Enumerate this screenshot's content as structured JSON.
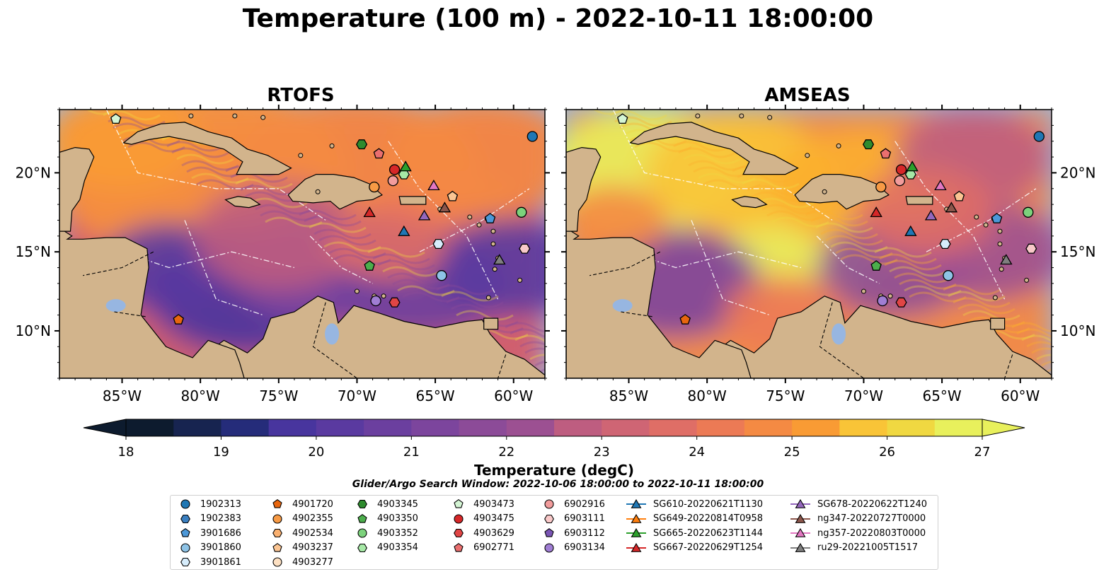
{
  "title": "Temperature (100 m) - 2022-10-11 18:00:00",
  "panels": [
    {
      "title": "RTOFS",
      "background": "#1a1d4e"
    },
    {
      "title": "AMSEAS",
      "background": "#e8b43c"
    }
  ],
  "map": {
    "lon_range": [
      -89,
      -58
    ],
    "lat_range": [
      7,
      24
    ],
    "x_ticks": [
      "85°W",
      "80°W",
      "75°W",
      "70°W",
      "65°W",
      "60°W"
    ],
    "x_tick_lons": [
      -85,
      -80,
      -75,
      -70,
      -65,
      -60
    ],
    "y_ticks": [
      "20°N",
      "15°N",
      "10°N"
    ],
    "y_tick_lats": [
      20,
      15,
      10
    ],
    "land_color": "#d2b48c",
    "ocean_color": "#97b6e1"
  },
  "colorbar": {
    "label": "Temperature (degC)",
    "ticks": [
      "18",
      "19",
      "20",
      "21",
      "22",
      "23",
      "24",
      "25",
      "26",
      "27"
    ],
    "min": 18,
    "max": 27,
    "step": 0.5,
    "colormap": [
      "#0d1b2e",
      "#172450",
      "#252c7a",
      "#362e95",
      "#48359e",
      "#5a3aa0",
      "#6b3f9f",
      "#7c459d",
      "#8c4b98",
      "#9c5092",
      "#ad568a",
      "#be5d80",
      "#cf6574",
      "#df6e66",
      "#ec7a55",
      "#f48a43",
      "#f99b34",
      "#fbae2f",
      "#f9c437",
      "#f0d841",
      "#e8f05c"
    ]
  },
  "search_window": "Glider/Argo Search Window: 2022-10-06 18:00:00 to 2022-10-11 18:00:00",
  "legend": [
    {
      "label": "1902313",
      "marker": "circle",
      "color": "#1f77b4",
      "lon": -58.8,
      "lat": 22.3
    },
    {
      "label": "1902383",
      "marker": "hexagon",
      "color": "#3a7fc0"
    },
    {
      "label": "3901686",
      "marker": "pentagon",
      "color": "#4c98d8",
      "lon": -61.5,
      "lat": 17.1
    },
    {
      "label": "3901860",
      "marker": "circle",
      "color": "#8ec3e6",
      "lon": -64.6,
      "lat": 13.5
    },
    {
      "label": "3901861",
      "marker": "hexagon",
      "color": "#d6ecfb",
      "lon": -64.8,
      "lat": 15.5
    },
    {
      "label": "4901720",
      "marker": "pentagon",
      "color": "#e8660e",
      "lon": -81.4,
      "lat": 10.7
    },
    {
      "label": "4902355",
      "marker": "circle",
      "color": "#f79a45",
      "lon": -68.9,
      "lat": 19.1
    },
    {
      "label": "4902534",
      "marker": "hexagon",
      "color": "#f9b070"
    },
    {
      "label": "4903237",
      "marker": "pentagon",
      "color": "#fbc593",
      "lon": -63.9,
      "lat": 18.5
    },
    {
      "label": "4903277",
      "marker": "circle",
      "color": "#fde0c2"
    },
    {
      "label": "4903345",
      "marker": "hexagon",
      "color": "#2e8b2e",
      "lon": -69.7,
      "lat": 21.8
    },
    {
      "label": "4903350",
      "marker": "pentagon",
      "color": "#4cae4c",
      "lon": -69.2,
      "lat": 14.1
    },
    {
      "label": "4903352",
      "marker": "circle",
      "color": "#7cd27c",
      "lon": -59.5,
      "lat": 17.5
    },
    {
      "label": "4903354",
      "marker": "hexagon",
      "color": "#a6e8a6",
      "lon": -67.0,
      "lat": 19.9
    },
    {
      "label": "4903473",
      "marker": "pentagon",
      "color": "#d4f5d4",
      "lon": -85.4,
      "lat": 23.4
    },
    {
      "label": "4903475",
      "marker": "circle",
      "color": "#d62728",
      "lon": -67.6,
      "lat": 20.2
    },
    {
      "label": "4903629",
      "marker": "hexagon",
      "color": "#e04545",
      "lon": -67.6,
      "lat": 11.8
    },
    {
      "label": "6902771",
      "marker": "pentagon",
      "color": "#ea6f6f",
      "lon": -68.6,
      "lat": 21.2
    },
    {
      "label": "6902916",
      "marker": "circle",
      "color": "#f29c9c",
      "lon": -67.7,
      "lat": 19.5
    },
    {
      "label": "6903111",
      "marker": "hexagon",
      "color": "#f9c9c9",
      "lon": -59.3,
      "lat": 15.2
    },
    {
      "label": "6903112",
      "marker": "pentagon",
      "color": "#7a55b5"
    },
    {
      "label": "6903134",
      "marker": "circle",
      "color": "#a07ed4",
      "lon": -68.8,
      "lat": 11.9
    },
    {
      "label": "SG610-20220621T1130",
      "marker": "triangle",
      "color": "#1f77b4",
      "lon": -67.0,
      "lat": 16.3
    },
    {
      "label": "SG649-20220814T0958",
      "marker": "triangle",
      "color": "#ff7f0e"
    },
    {
      "label": "SG665-20220623T1144",
      "marker": "triangle",
      "color": "#2ca02c",
      "lon": -66.9,
      "lat": 20.4
    },
    {
      "label": "SG667-20220629T1254",
      "marker": "triangle",
      "color": "#d62728",
      "lon": -69.2,
      "lat": 17.5
    },
    {
      "label": "SG678-20220622T1240",
      "marker": "triangle",
      "color": "#9467bd",
      "lon": -65.7,
      "lat": 17.3
    },
    {
      "label": "ng347-20220727T0000",
      "marker": "triangle",
      "color": "#8c564b",
      "lon": -64.4,
      "lat": 17.8
    },
    {
      "label": "ng357-20220803T0000",
      "marker": "triangle",
      "color": "#e377c2",
      "lon": -65.1,
      "lat": 19.2
    },
    {
      "label": "ru29-20221005T1517",
      "marker": "triangle",
      "color": "#7f7f7f",
      "lon": -60.9,
      "lat": 14.5
    }
  ]
}
